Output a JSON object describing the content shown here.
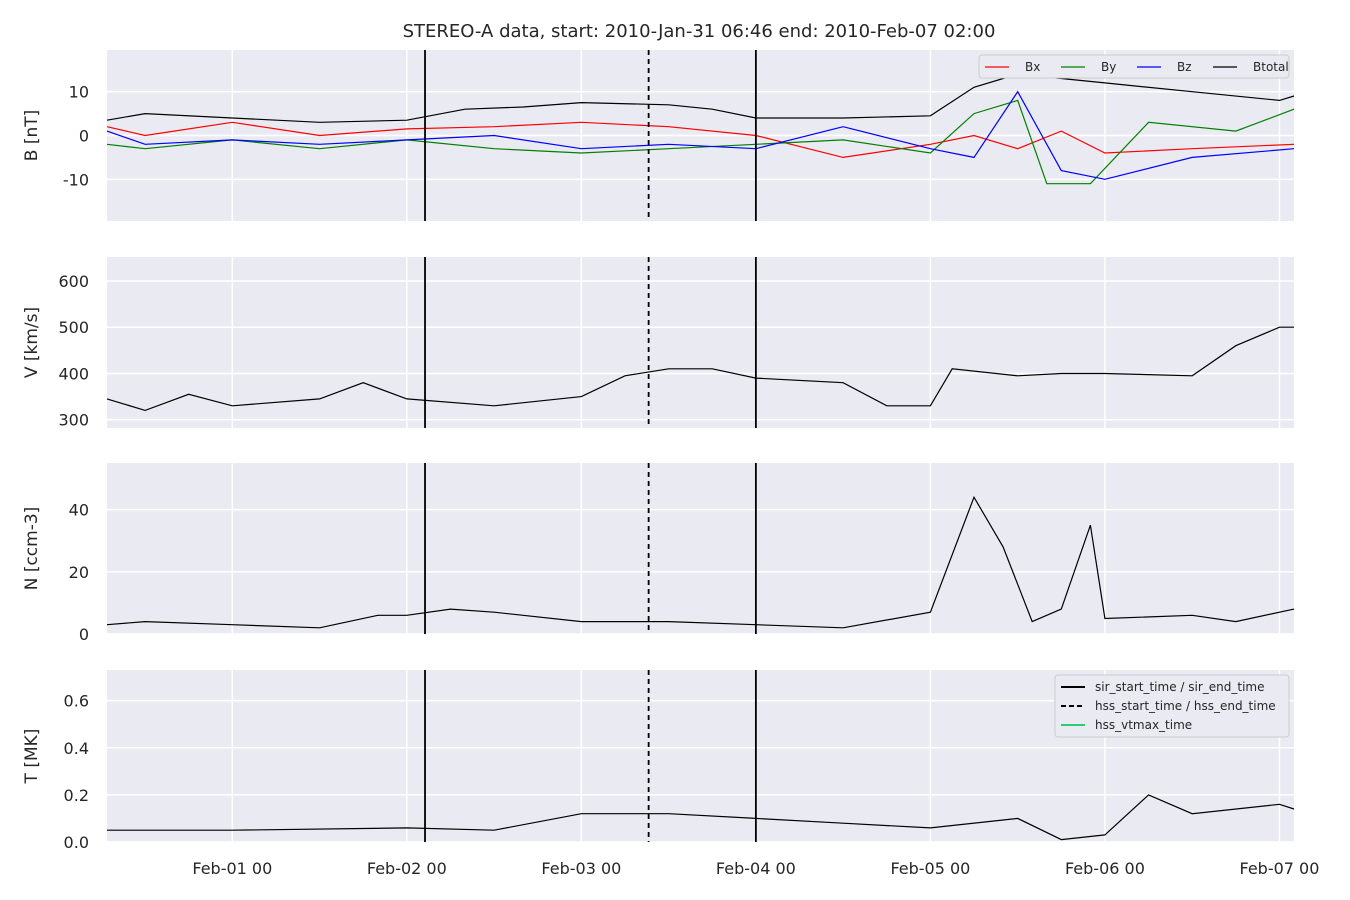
{
  "chart_data": {
    "type": "line",
    "title": "STEREO-A data, start: 2010-Jan-31 06:46  end: 2010-Feb-07 02:00",
    "x_range": [
      "2010-01-31 06:46",
      "2010-02-07 02:00"
    ],
    "x_ticks": [
      {
        "date": "2010-02-01 00:00",
        "label": "Feb-01 00"
      },
      {
        "date": "2010-02-02 00:00",
        "label": "Feb-02 00"
      },
      {
        "date": "2010-02-03 00:00",
        "label": "Feb-03 00"
      },
      {
        "date": "2010-02-04 00:00",
        "label": "Feb-04 00"
      },
      {
        "date": "2010-02-05 00:00",
        "label": "Feb-05 00"
      },
      {
        "date": "2010-02-06 00:00",
        "label": "Feb-06 00"
      },
      {
        "date": "2010-02-07 00:00",
        "label": "Feb-07 00"
      }
    ],
    "grid": true,
    "events": {
      "sir_start_time": "2010-02-02 02:30",
      "sir_end_time": "2010-02-04 00:00",
      "hss_start_time": "2010-02-03 09:15",
      "hss_end_time": "2010-02-03 09:15"
    },
    "panels": [
      {
        "ylabel": "B [nT]",
        "ylim": [
          -19.5,
          19.5
        ],
        "yticks": [
          -10,
          0,
          10
        ],
        "legend": {
          "placement": "top-right",
          "entries": [
            "Bx",
            "By",
            "Bz",
            "Btotal"
          ]
        },
        "series": [
          {
            "name": "Btotal",
            "color": "#000000",
            "points": [
              [
                "2010-01-31 06:46",
                3.5
              ],
              [
                "2010-01-31 12:00",
                5
              ],
              [
                "2010-02-01 00:00",
                4
              ],
              [
                "2010-02-01 12:00",
                3
              ],
              [
                "2010-02-02 00:00",
                3.5
              ],
              [
                "2010-02-02 08:00",
                6
              ],
              [
                "2010-02-02 16:00",
                6.5
              ],
              [
                "2010-02-03 00:00",
                7.5
              ],
              [
                "2010-02-03 12:00",
                7
              ],
              [
                "2010-02-03 18:00",
                6
              ],
              [
                "2010-02-04 00:00",
                4
              ],
              [
                "2010-02-04 12:00",
                4
              ],
              [
                "2010-02-05 00:00",
                4.5
              ],
              [
                "2010-02-05 06:00",
                11
              ],
              [
                "2010-02-05 12:00",
                14
              ],
              [
                "2010-02-05 18:00",
                13
              ],
              [
                "2010-02-06 00:00",
                12
              ],
              [
                "2010-02-06 12:00",
                10
              ],
              [
                "2010-02-07 00:00",
                8
              ],
              [
                "2010-02-07 02:00",
                9
              ]
            ]
          },
          {
            "name": "Bx",
            "color": "#ff0000",
            "points": [
              [
                "2010-01-31 06:46",
                2
              ],
              [
                "2010-01-31 12:00",
                0
              ],
              [
                "2010-02-01 00:00",
                3
              ],
              [
                "2010-02-01 12:00",
                0
              ],
              [
                "2010-02-02 00:00",
                1.5
              ],
              [
                "2010-02-02 12:00",
                2
              ],
              [
                "2010-02-03 00:00",
                3
              ],
              [
                "2010-02-03 12:00",
                2
              ],
              [
                "2010-02-04 00:00",
                0
              ],
              [
                "2010-02-04 12:00",
                -5
              ],
              [
                "2010-02-05 00:00",
                -2
              ],
              [
                "2010-02-05 06:00",
                0
              ],
              [
                "2010-02-05 12:00",
                -3
              ],
              [
                "2010-02-05 18:00",
                1
              ],
              [
                "2010-02-06 00:00",
                -4
              ],
              [
                "2010-02-06 12:00",
                -3
              ],
              [
                "2010-02-07 02:00",
                -2
              ]
            ]
          },
          {
            "name": "By",
            "color": "#008000",
            "points": [
              [
                "2010-01-31 06:46",
                -2
              ],
              [
                "2010-01-31 12:00",
                -3
              ],
              [
                "2010-02-01 00:00",
                -1
              ],
              [
                "2010-02-01 12:00",
                -3
              ],
              [
                "2010-02-02 00:00",
                -1
              ],
              [
                "2010-02-02 12:00",
                -3
              ],
              [
                "2010-02-03 00:00",
                -4
              ],
              [
                "2010-02-03 12:00",
                -3
              ],
              [
                "2010-02-04 00:00",
                -2
              ],
              [
                "2010-02-04 12:00",
                -1
              ],
              [
                "2010-02-05 00:00",
                -4
              ],
              [
                "2010-02-05 06:00",
                5
              ],
              [
                "2010-02-05 12:00",
                8
              ],
              [
                "2010-02-05 16:00",
                -11
              ],
              [
                "2010-02-05 22:00",
                -11
              ],
              [
                "2010-02-06 06:00",
                3
              ],
              [
                "2010-02-06 18:00",
                1
              ],
              [
                "2010-02-07 02:00",
                6
              ]
            ]
          },
          {
            "name": "Bz",
            "color": "#0000ff",
            "points": [
              [
                "2010-01-31 06:46",
                1
              ],
              [
                "2010-01-31 12:00",
                -2
              ],
              [
                "2010-02-01 00:00",
                -1
              ],
              [
                "2010-02-01 12:00",
                -2
              ],
              [
                "2010-02-02 00:00",
                -1
              ],
              [
                "2010-02-02 12:00",
                0
              ],
              [
                "2010-02-03 00:00",
                -3
              ],
              [
                "2010-02-03 12:00",
                -2
              ],
              [
                "2010-02-04 00:00",
                -3
              ],
              [
                "2010-02-04 12:00",
                2
              ],
              [
                "2010-02-05 00:00",
                -3
              ],
              [
                "2010-02-05 06:00",
                -5
              ],
              [
                "2010-02-05 12:00",
                10
              ],
              [
                "2010-02-05 18:00",
                -8
              ],
              [
                "2010-02-06 00:00",
                -10
              ],
              [
                "2010-02-06 12:00",
                -5
              ],
              [
                "2010-02-07 02:00",
                -3
              ]
            ]
          }
        ]
      },
      {
        "ylabel": "V [km/s]",
        "ylim": [
          282,
          652
        ],
        "yticks": [
          300,
          400,
          500,
          600
        ],
        "series": [
          {
            "name": "V",
            "color": "#000000",
            "points": [
              [
                "2010-01-31 06:46",
                345
              ],
              [
                "2010-01-31 12:00",
                320
              ],
              [
                "2010-01-31 18:00",
                355
              ],
              [
                "2010-02-01 00:00",
                330
              ],
              [
                "2010-02-01 12:00",
                345
              ],
              [
                "2010-02-01 18:00",
                380
              ],
              [
                "2010-02-02 00:00",
                345
              ],
              [
                "2010-02-02 12:00",
                330
              ],
              [
                "2010-02-02 18:00",
                340
              ],
              [
                "2010-02-03 00:00",
                350
              ],
              [
                "2010-02-03 06:00",
                395
              ],
              [
                "2010-02-03 12:00",
                410
              ],
              [
                "2010-02-03 18:00",
                410
              ],
              [
                "2010-02-04 00:00",
                390
              ],
              [
                "2010-02-04 12:00",
                380
              ],
              [
                "2010-02-04 18:00",
                330
              ],
              [
                "2010-02-05 00:00",
                330
              ],
              [
                "2010-02-05 03:00",
                410
              ],
              [
                "2010-02-05 12:00",
                395
              ],
              [
                "2010-02-05 18:00",
                400
              ],
              [
                "2010-02-06 00:00",
                400
              ],
              [
                "2010-02-06 12:00",
                395
              ],
              [
                "2010-02-06 18:00",
                460
              ],
              [
                "2010-02-07 00:00",
                500
              ],
              [
                "2010-02-07 02:00",
                500
              ]
            ]
          }
        ]
      },
      {
        "ylabel": "N [ccm-3]",
        "ylim": [
          0,
          55
        ],
        "yticks": [
          0,
          20,
          40
        ],
        "series": [
          {
            "name": "N",
            "color": "#000000",
            "points": [
              [
                "2010-01-31 06:46",
                3
              ],
              [
                "2010-01-31 12:00",
                4
              ],
              [
                "2010-02-01 00:00",
                3
              ],
              [
                "2010-02-01 12:00",
                2
              ],
              [
                "2010-02-01 20:00",
                6
              ],
              [
                "2010-02-02 00:00",
                6
              ],
              [
                "2010-02-02 06:00",
                8
              ],
              [
                "2010-02-02 12:00",
                7
              ],
              [
                "2010-02-03 00:00",
                4
              ],
              [
                "2010-02-03 12:00",
                4
              ],
              [
                "2010-02-04 00:00",
                3
              ],
              [
                "2010-02-04 12:00",
                2
              ],
              [
                "2010-02-05 00:00",
                7
              ],
              [
                "2010-02-05 06:00",
                44
              ],
              [
                "2010-02-05 10:00",
                28
              ],
              [
                "2010-02-05 14:00",
                4
              ],
              [
                "2010-02-05 18:00",
                8
              ],
              [
                "2010-02-05 22:00",
                35
              ],
              [
                "2010-02-06 00:00",
                5
              ],
              [
                "2010-02-06 12:00",
                6
              ],
              [
                "2010-02-06 18:00",
                4
              ],
              [
                "2010-02-07 02:00",
                8
              ]
            ]
          }
        ]
      },
      {
        "ylabel": "T [MK]",
        "ylim": [
          0,
          0.73
        ],
        "yticks": [
          0.0,
          0.2,
          0.4,
          0.6
        ],
        "legend": {
          "placement": "top-right",
          "entries": [
            "sir_start_time / sir_end_time",
            "hss_start_time / hss_end_time",
            "hss_vtmax_time"
          ]
        },
        "series": [
          {
            "name": "T",
            "color": "#000000",
            "points": [
              [
                "2010-01-31 06:46",
                0.05
              ],
              [
                "2010-02-01 00:00",
                0.05
              ],
              [
                "2010-02-02 00:00",
                0.06
              ],
              [
                "2010-02-02 12:00",
                0.05
              ],
              [
                "2010-02-03 00:00",
                0.12
              ],
              [
                "2010-02-03 12:00",
                0.12
              ],
              [
                "2010-02-04 00:00",
                0.1
              ],
              [
                "2010-02-04 12:00",
                0.08
              ],
              [
                "2010-02-05 00:00",
                0.06
              ],
              [
                "2010-02-05 12:00",
                0.1
              ],
              [
                "2010-02-05 18:00",
                0.01
              ],
              [
                "2010-02-06 00:00",
                0.03
              ],
              [
                "2010-02-06 06:00",
                0.2
              ],
              [
                "2010-02-06 12:00",
                0.12
              ],
              [
                "2010-02-07 00:00",
                0.16
              ],
              [
                "2010-02-07 02:00",
                0.14
              ]
            ]
          }
        ]
      }
    ]
  }
}
